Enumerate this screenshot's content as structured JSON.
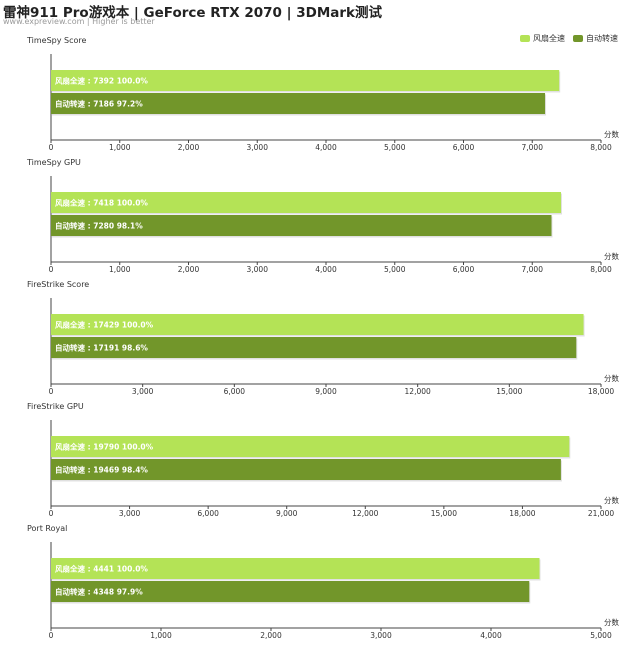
{
  "header": {
    "title": "雷神911 Pro游戏本 | GeForce RTX 2070 | 3DMark测试",
    "subtitle": "www.expreview.com | Higher is better"
  },
  "legend": {
    "items": [
      {
        "label": "风扇全速",
        "color": "#b4e356"
      },
      {
        "label": "自动转速",
        "color": "#72962a"
      }
    ]
  },
  "chart_data": [
    {
      "type": "bar",
      "title": "TimeSpy Score",
      "xlabel": "分数",
      "xlim": [
        0,
        8000
      ],
      "ticks": [
        0,
        1000,
        2000,
        3000,
        4000,
        5000,
        6000,
        7000,
        8000
      ],
      "series": [
        {
          "name": "风扇全速",
          "value": 7392,
          "percent": "100.0%"
        },
        {
          "name": "自动转速",
          "value": 7186,
          "percent": "97.2%"
        }
      ]
    },
    {
      "type": "bar",
      "title": "TimeSpy GPU",
      "xlabel": "分数",
      "xlim": [
        0,
        8000
      ],
      "ticks": [
        0,
        1000,
        2000,
        3000,
        4000,
        5000,
        6000,
        7000,
        8000
      ],
      "series": [
        {
          "name": "风扇全速",
          "value": 7418,
          "percent": "100.0%"
        },
        {
          "name": "自动转速",
          "value": 7280,
          "percent": "98.1%"
        }
      ]
    },
    {
      "type": "bar",
      "title": "FireStrike Score",
      "xlabel": "分数",
      "xlim": [
        0,
        18000
      ],
      "ticks": [
        0,
        3000,
        6000,
        9000,
        12000,
        15000,
        18000
      ],
      "series": [
        {
          "name": "风扇全速",
          "value": 17429,
          "percent": "100.0%"
        },
        {
          "name": "自动转速",
          "value": 17191,
          "percent": "98.6%"
        }
      ]
    },
    {
      "type": "bar",
      "title": "FireStrike GPU",
      "xlabel": "分数",
      "xlim": [
        0,
        21000
      ],
      "ticks": [
        0,
        3000,
        6000,
        9000,
        12000,
        15000,
        18000,
        21000
      ],
      "series": [
        {
          "name": "风扇全速",
          "value": 19790,
          "percent": "100.0%"
        },
        {
          "name": "自动转速",
          "value": 19469,
          "percent": "98.4%"
        }
      ]
    },
    {
      "type": "bar",
      "title": "Port Royal",
      "xlabel": "分数",
      "xlim": [
        0,
        5000
      ],
      "ticks": [
        0,
        1000,
        2000,
        3000,
        4000,
        5000
      ],
      "series": [
        {
          "name": "风扇全速",
          "value": 4441,
          "percent": "100.0%"
        },
        {
          "name": "自动转速",
          "value": 4348,
          "percent": "97.9%"
        }
      ]
    }
  ]
}
